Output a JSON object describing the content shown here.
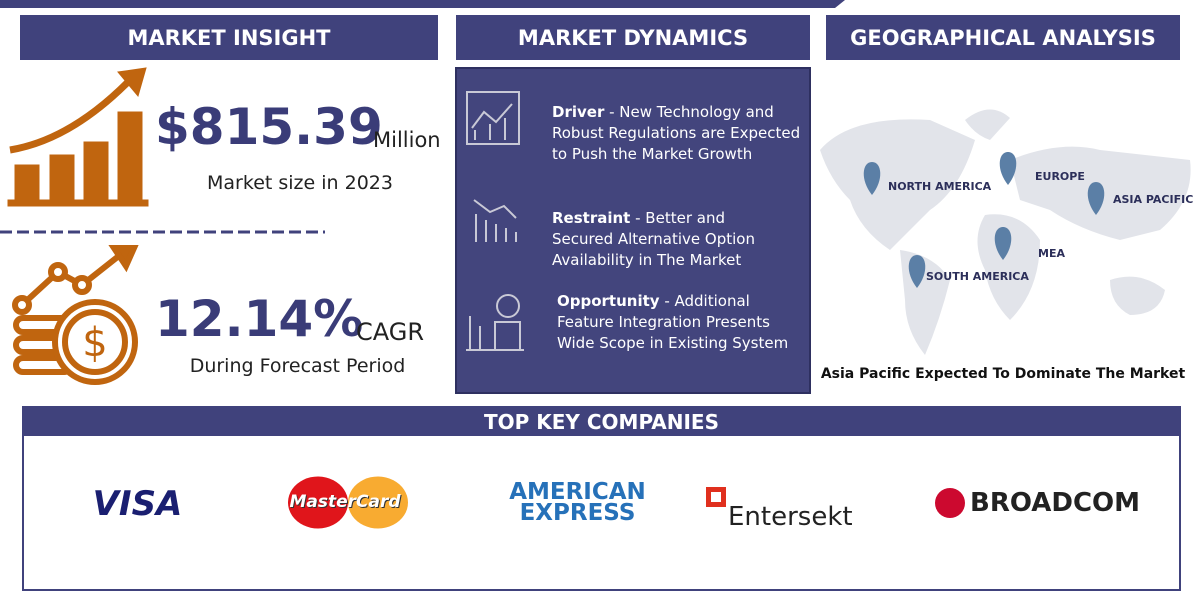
{
  "market_insight": {
    "title": "MARKET INSIGHT",
    "market_size": "$815.39",
    "market_size_unit": "Million",
    "market_size_label": "Market size in 2023",
    "cagr": "12.14%",
    "cagr_unit": "CAGR",
    "cagr_label": "During Forecast Period"
  },
  "market_dynamics": {
    "title": "MARKET DYNAMICS",
    "items": [
      {
        "label": "Driver",
        "text": "- New Technology and Robust Regulations are Expected to Push the Market Growth"
      },
      {
        "label": "Restraint",
        "text": "- Better and Secured Alternative Option Availability in The Market"
      },
      {
        "label": "Opportunity",
        "text": "- Additional Feature Integration Presents Wide Scope in Existing System"
      }
    ]
  },
  "geographical_analysis": {
    "title": "GEOGRAPHICAL ANALYSIS",
    "regions": [
      "NORTH AMERICA",
      "EUROPE",
      "ASIA PACIFIC",
      "MEA",
      "SOUTH AMERICA"
    ],
    "caption": "Asia Pacific Expected To Dominate The Market"
  },
  "top_key_companies": {
    "title": "TOP KEY COMPANIES",
    "companies": [
      "VISA",
      "MasterCard",
      "AMERICAN EXPRESS",
      "Entersekt",
      "BROADCOM"
    ]
  }
}
